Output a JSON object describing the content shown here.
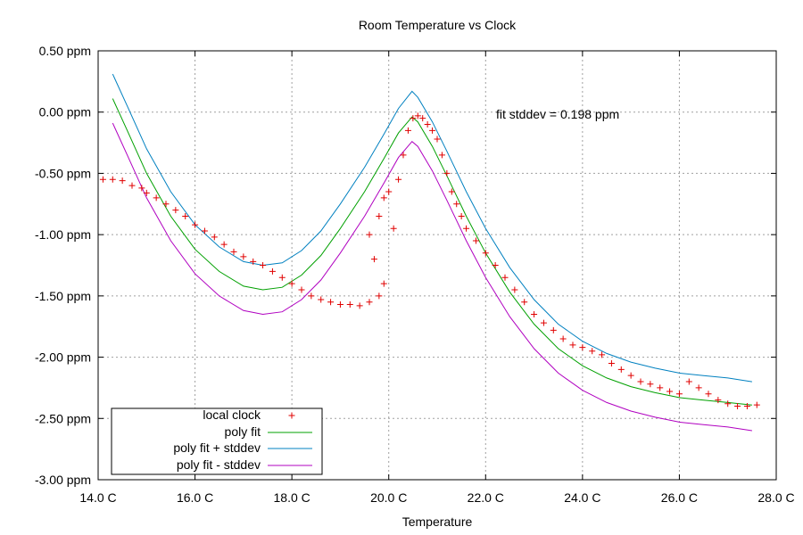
{
  "chart_data": {
    "type": "scatter",
    "title": "Room Temperature vs Clock",
    "xlabel": "Temperature",
    "ylabel": "",
    "xlim": [
      14.0,
      28.0
    ],
    "ylim": [
      -3.0,
      0.5
    ],
    "x_ticks": [
      14,
      16,
      18,
      20,
      22,
      24,
      26,
      28
    ],
    "x_tick_labels": [
      "14.0 C",
      "16.0 C",
      "18.0 C",
      "20.0 C",
      "22.0 C",
      "24.0 C",
      "26.0 C",
      "28.0 C"
    ],
    "y_ticks": [
      0.5,
      0.0,
      -0.5,
      -1.0,
      -1.5,
      -2.0,
      -2.5,
      -3.0
    ],
    "y_tick_labels": [
      "0.50 ppm",
      "0.00 ppm",
      "-0.50 ppm",
      "-1.00 ppm",
      "-1.50 ppm",
      "-2.00 ppm",
      "-2.50 ppm",
      "-3.00 ppm"
    ],
    "grid": true,
    "legend_position": "bottom-left",
    "annotation": "fit stddev = 0.198 ppm",
    "series": [
      {
        "name": "local clock",
        "kind": "scatter",
        "marker": "+",
        "color": "#e00000",
        "points": [
          [
            14.1,
            -0.55
          ],
          [
            14.3,
            -0.55
          ],
          [
            14.5,
            -0.56
          ],
          [
            14.7,
            -0.6
          ],
          [
            14.9,
            -0.62
          ],
          [
            15.0,
            -0.66
          ],
          [
            15.2,
            -0.7
          ],
          [
            15.4,
            -0.75
          ],
          [
            15.6,
            -0.8
          ],
          [
            15.8,
            -0.85
          ],
          [
            16.0,
            -0.92
          ],
          [
            16.2,
            -0.97
          ],
          [
            16.4,
            -1.02
          ],
          [
            16.6,
            -1.08
          ],
          [
            16.8,
            -1.14
          ],
          [
            17.0,
            -1.18
          ],
          [
            17.2,
            -1.22
          ],
          [
            17.4,
            -1.25
          ],
          [
            17.6,
            -1.3
          ],
          [
            17.8,
            -1.35
          ],
          [
            18.0,
            -1.4
          ],
          [
            18.2,
            -1.45
          ],
          [
            18.4,
            -1.5
          ],
          [
            18.6,
            -1.53
          ],
          [
            18.8,
            -1.55
          ],
          [
            19.0,
            -1.57
          ],
          [
            19.2,
            -1.57
          ],
          [
            19.4,
            -1.58
          ],
          [
            19.6,
            -1.55
          ],
          [
            19.8,
            -1.5
          ],
          [
            19.9,
            -1.4
          ],
          [
            19.7,
            -1.2
          ],
          [
            19.6,
            -1.0
          ],
          [
            19.8,
            -0.85
          ],
          [
            19.9,
            -0.7
          ],
          [
            20.0,
            -0.65
          ],
          [
            20.1,
            -0.95
          ],
          [
            20.2,
            -0.55
          ],
          [
            20.3,
            -0.35
          ],
          [
            20.4,
            -0.15
          ],
          [
            20.5,
            -0.05
          ],
          [
            20.6,
            -0.03
          ],
          [
            20.7,
            -0.05
          ],
          [
            20.8,
            -0.1
          ],
          [
            20.9,
            -0.15
          ],
          [
            21.0,
            -0.22
          ],
          [
            21.1,
            -0.35
          ],
          [
            21.2,
            -0.5
          ],
          [
            21.3,
            -0.65
          ],
          [
            21.4,
            -0.75
          ],
          [
            21.5,
            -0.85
          ],
          [
            21.6,
            -0.95
          ],
          [
            21.8,
            -1.05
          ],
          [
            22.0,
            -1.15
          ],
          [
            22.2,
            -1.25
          ],
          [
            22.4,
            -1.35
          ],
          [
            22.6,
            -1.45
          ],
          [
            22.8,
            -1.55
          ],
          [
            23.0,
            -1.65
          ],
          [
            23.2,
            -1.72
          ],
          [
            23.4,
            -1.78
          ],
          [
            23.6,
            -1.85
          ],
          [
            23.8,
            -1.9
          ],
          [
            24.0,
            -1.92
          ],
          [
            24.2,
            -1.95
          ],
          [
            24.4,
            -1.98
          ],
          [
            24.6,
            -2.05
          ],
          [
            24.8,
            -2.1
          ],
          [
            25.0,
            -2.15
          ],
          [
            25.2,
            -2.2
          ],
          [
            25.4,
            -2.22
          ],
          [
            25.6,
            -2.25
          ],
          [
            25.8,
            -2.28
          ],
          [
            26.0,
            -2.3
          ],
          [
            26.2,
            -2.2
          ],
          [
            26.4,
            -2.25
          ],
          [
            26.6,
            -2.3
          ],
          [
            26.8,
            -2.35
          ],
          [
            27.0,
            -2.38
          ],
          [
            27.2,
            -2.4
          ],
          [
            27.4,
            -2.4
          ],
          [
            27.6,
            -2.39
          ]
        ]
      },
      {
        "name": "poly fit",
        "kind": "line",
        "color": "#00a000",
        "points": [
          [
            14.3,
            0.11
          ],
          [
            14.6,
            -0.15
          ],
          [
            15.0,
            -0.5
          ],
          [
            15.5,
            -0.85
          ],
          [
            16.0,
            -1.12
          ],
          [
            16.5,
            -1.3
          ],
          [
            17.0,
            -1.42
          ],
          [
            17.4,
            -1.45
          ],
          [
            17.8,
            -1.43
          ],
          [
            18.2,
            -1.33
          ],
          [
            18.6,
            -1.17
          ],
          [
            19.0,
            -0.95
          ],
          [
            19.5,
            -0.65
          ],
          [
            19.9,
            -0.38
          ],
          [
            20.2,
            -0.17
          ],
          [
            20.48,
            -0.04
          ],
          [
            20.6,
            -0.08
          ],
          [
            20.9,
            -0.28
          ],
          [
            21.2,
            -0.52
          ],
          [
            21.6,
            -0.85
          ],
          [
            22.0,
            -1.15
          ],
          [
            22.5,
            -1.47
          ],
          [
            23.0,
            -1.73
          ],
          [
            23.5,
            -1.93
          ],
          [
            24.0,
            -2.07
          ],
          [
            24.5,
            -2.17
          ],
          [
            25.0,
            -2.24
          ],
          [
            25.5,
            -2.29
          ],
          [
            26.0,
            -2.33
          ],
          [
            26.5,
            -2.35
          ],
          [
            27.0,
            -2.37
          ],
          [
            27.5,
            -2.39
          ]
        ]
      },
      {
        "name": "poly fit + stddev",
        "kind": "line",
        "color": "#0080c0",
        "points": [
          [
            14.3,
            0.31
          ],
          [
            14.6,
            0.05
          ],
          [
            15.0,
            -0.3
          ],
          [
            15.5,
            -0.65
          ],
          [
            16.0,
            -0.92
          ],
          [
            16.5,
            -1.1
          ],
          [
            17.0,
            -1.22
          ],
          [
            17.4,
            -1.25
          ],
          [
            17.8,
            -1.23
          ],
          [
            18.2,
            -1.13
          ],
          [
            18.6,
            -0.97
          ],
          [
            19.0,
            -0.75
          ],
          [
            19.5,
            -0.45
          ],
          [
            19.9,
            -0.18
          ],
          [
            20.2,
            0.03
          ],
          [
            20.48,
            0.17
          ],
          [
            20.6,
            0.12
          ],
          [
            20.9,
            -0.08
          ],
          [
            21.2,
            -0.32
          ],
          [
            21.6,
            -0.65
          ],
          [
            22.0,
            -0.95
          ],
          [
            22.5,
            -1.27
          ],
          [
            23.0,
            -1.53
          ],
          [
            23.5,
            -1.73
          ],
          [
            24.0,
            -1.87
          ],
          [
            24.5,
            -1.97
          ],
          [
            25.0,
            -2.04
          ],
          [
            25.5,
            -2.09
          ],
          [
            26.0,
            -2.13
          ],
          [
            26.5,
            -2.15
          ],
          [
            27.0,
            -2.17
          ],
          [
            27.5,
            -2.2
          ]
        ]
      },
      {
        "name": "poly fit - stddev",
        "kind": "line",
        "color": "#b000c0",
        "points": [
          [
            14.3,
            -0.09
          ],
          [
            14.6,
            -0.35
          ],
          [
            15.0,
            -0.7
          ],
          [
            15.5,
            -1.05
          ],
          [
            16.0,
            -1.32
          ],
          [
            16.5,
            -1.5
          ],
          [
            17.0,
            -1.62
          ],
          [
            17.4,
            -1.65
          ],
          [
            17.8,
            -1.63
          ],
          [
            18.2,
            -1.53
          ],
          [
            18.6,
            -1.37
          ],
          [
            19.0,
            -1.15
          ],
          [
            19.5,
            -0.85
          ],
          [
            19.9,
            -0.58
          ],
          [
            20.2,
            -0.37
          ],
          [
            20.48,
            -0.24
          ],
          [
            20.6,
            -0.28
          ],
          [
            20.9,
            -0.48
          ],
          [
            21.2,
            -0.72
          ],
          [
            21.6,
            -1.05
          ],
          [
            22.0,
            -1.35
          ],
          [
            22.5,
            -1.67
          ],
          [
            23.0,
            -1.93
          ],
          [
            23.5,
            -2.13
          ],
          [
            24.0,
            -2.27
          ],
          [
            24.5,
            -2.37
          ],
          [
            25.0,
            -2.44
          ],
          [
            25.5,
            -2.49
          ],
          [
            26.0,
            -2.53
          ],
          [
            26.5,
            -2.55
          ],
          [
            27.0,
            -2.57
          ],
          [
            27.5,
            -2.6
          ]
        ]
      }
    ]
  }
}
